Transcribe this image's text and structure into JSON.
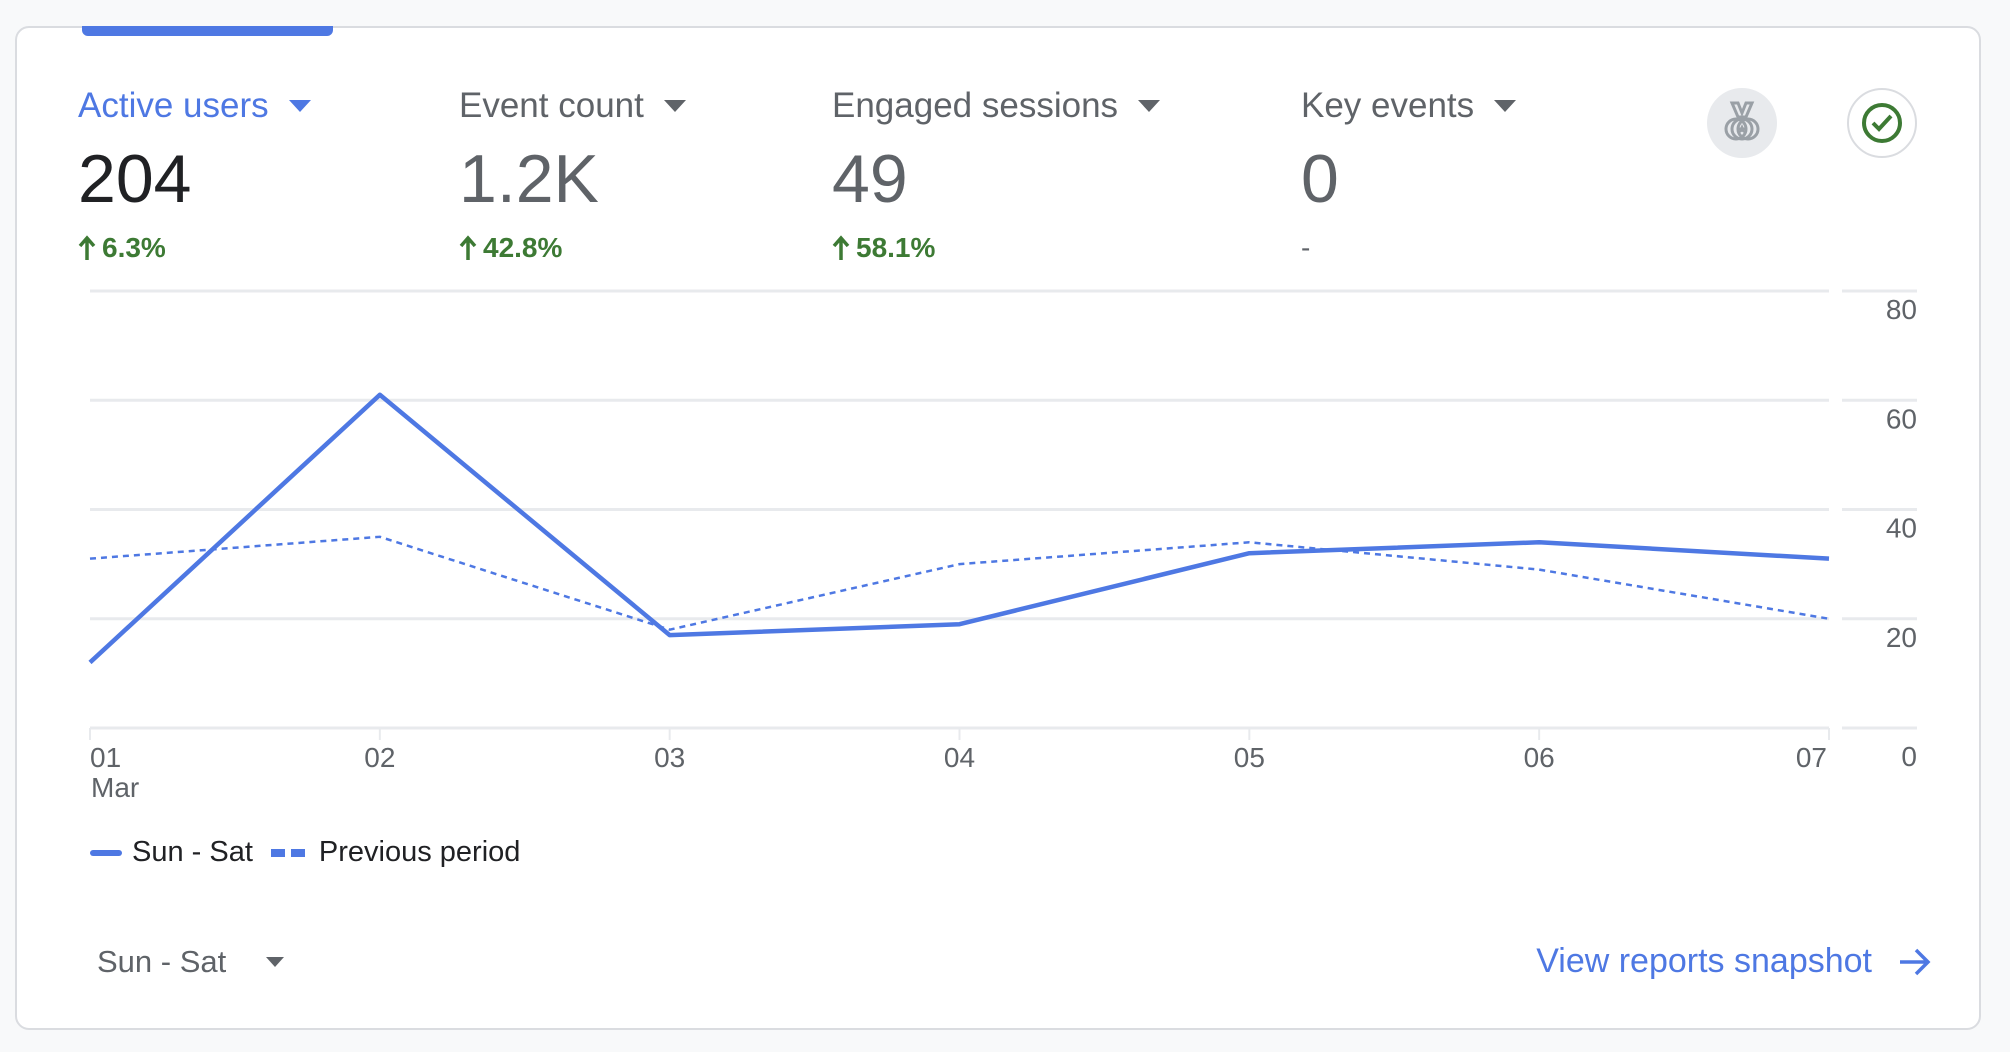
{
  "metrics": [
    {
      "label": "Active users",
      "value": "204",
      "change": "6.3%",
      "trend": "up",
      "active": true
    },
    {
      "label": "Event count",
      "value": "1.2K",
      "change": "42.8%",
      "trend": "up",
      "active": false
    },
    {
      "label": "Engaged sessions",
      "value": "49",
      "change": "58.1%",
      "trend": "up",
      "active": false
    },
    {
      "label": "Key events",
      "value": "0",
      "change": "-",
      "trend": "none",
      "active": false
    }
  ],
  "icons": {
    "badge": "medal-icon",
    "status": "check-circle-icon"
  },
  "colors": {
    "accent": "#4e78e3",
    "positive": "#3d7a34",
    "check": "#3d7a34"
  },
  "chart_data": {
    "type": "line",
    "x": [
      "01",
      "02",
      "03",
      "04",
      "05",
      "06",
      "07"
    ],
    "x_month_label": "Mar",
    "y_ticks": [
      "0",
      "20",
      "40",
      "60",
      "80"
    ],
    "ylim": [
      0,
      80
    ],
    "grid": true,
    "legend_placement": "bottom-left",
    "series": [
      {
        "name": "Sun - Sat",
        "style": "solid",
        "values": [
          12,
          61,
          17,
          19,
          32,
          34,
          31
        ]
      },
      {
        "name": "Previous period",
        "style": "dashed",
        "values": [
          31,
          35,
          18,
          30,
          34,
          29,
          20
        ]
      }
    ]
  },
  "footer": {
    "date_range": "Sun - Sat",
    "view_link": "View reports snapshot"
  }
}
